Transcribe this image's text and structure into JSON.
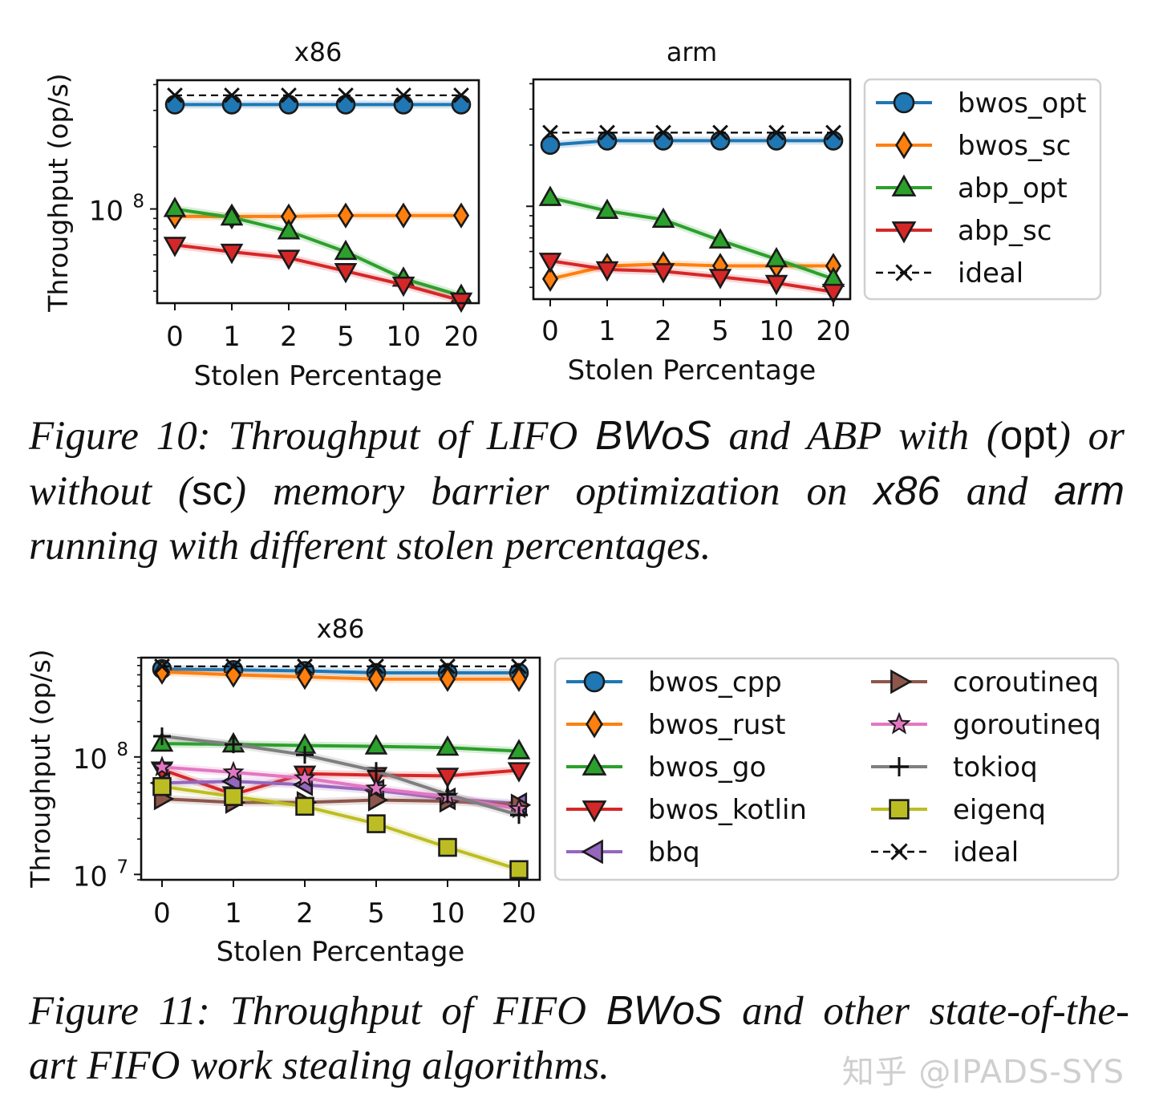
{
  "chart_data": [
    {
      "type": "line",
      "title": "x86",
      "figure": "Figure 10",
      "xlabel": "Stolen Percentage",
      "ylabel": "Throughput (op/s)",
      "yscale": "log",
      "ylim": [
        35000000,
        420000000
      ],
      "yticks": [
        {
          "value": 100000000,
          "label": "10",
          "exp": "8"
        }
      ],
      "categories": [
        "0",
        "1",
        "2",
        "5",
        "10",
        "20"
      ],
      "series": [
        {
          "name": "bwos_opt",
          "color": "#1f77b4",
          "marker": "circle",
          "values": [
            320000000,
            320000000,
            320000000,
            320000000,
            320000000,
            320000000
          ]
        },
        {
          "name": "bwos_sc",
          "color": "#ff7f0e",
          "marker": "diamond",
          "values": [
            92000000,
            92000000,
            92000000,
            93000000,
            93000000,
            93000000
          ]
        },
        {
          "name": "abp_opt",
          "color": "#2ca02c",
          "marker": "triangle-up",
          "values": [
            100000000,
            91000000,
            78000000,
            62000000,
            46000000,
            38000000
          ]
        },
        {
          "name": "abp_sc",
          "color": "#d62728",
          "marker": "triangle-down",
          "values": [
            67000000,
            62000000,
            58000000,
            50000000,
            43000000,
            36000000
          ]
        },
        {
          "name": "ideal",
          "color": "#000000",
          "marker": "x",
          "dashed": true,
          "values": [
            355000000,
            355000000,
            355000000,
            355000000,
            355000000,
            355000000
          ]
        }
      ]
    },
    {
      "type": "line",
      "title": "arm",
      "figure": "Figure 10",
      "xlabel": "Stolen Percentage",
      "ylabel": "",
      "yscale": "log",
      "ylim": [
        35000000,
        420000000
      ],
      "yticks": [],
      "categories": [
        "0",
        "1",
        "2",
        "5",
        "10",
        "20"
      ],
      "series": [
        {
          "name": "bwos_opt",
          "color": "#1f77b4",
          "marker": "circle",
          "values": [
            200000000,
            210000000,
            210000000,
            210000000,
            210000000,
            210000000
          ]
        },
        {
          "name": "bwos_sc",
          "color": "#ff7f0e",
          "marker": "diamond",
          "values": [
            44000000,
            51000000,
            52000000,
            51000000,
            51000000,
            51000000
          ]
        },
        {
          "name": "abp_opt",
          "color": "#2ca02c",
          "marker": "triangle-up",
          "values": [
            110000000,
            95000000,
            86000000,
            68000000,
            55000000,
            44000000
          ]
        },
        {
          "name": "abp_sc",
          "color": "#d62728",
          "marker": "triangle-down",
          "values": [
            54000000,
            49000000,
            48000000,
            45000000,
            42000000,
            38000000
          ]
        },
        {
          "name": "ideal",
          "color": "#000000",
          "marker": "x",
          "dashed": true,
          "values": [
            230000000,
            230000000,
            230000000,
            230000000,
            230000000,
            230000000
          ]
        }
      ]
    },
    {
      "type": "line",
      "title": "x86",
      "figure": "Figure 11",
      "xlabel": "Stolen Percentage",
      "ylabel": "Throughput (op/s)",
      "yscale": "log",
      "ylim": [
        9000000,
        700000000
      ],
      "yticks": [
        {
          "value": 10000000,
          "label": "10",
          "exp": "7"
        },
        {
          "value": 100000000,
          "label": "10",
          "exp": "8"
        }
      ],
      "categories": [
        "0",
        "1",
        "2",
        "5",
        "10",
        "20"
      ],
      "series": [
        {
          "name": "bwos_cpp",
          "color": "#1f77b4",
          "marker": "circle",
          "values": [
            560000000,
            550000000,
            540000000,
            520000000,
            520000000,
            520000000
          ]
        },
        {
          "name": "bwos_rust",
          "color": "#ff7f0e",
          "marker": "diamond",
          "values": [
            530000000,
            500000000,
            480000000,
            460000000,
            460000000,
            460000000
          ]
        },
        {
          "name": "bwos_go",
          "color": "#2ca02c",
          "marker": "triangle-up",
          "values": [
            130000000,
            128000000,
            125000000,
            123000000,
            120000000,
            112000000
          ]
        },
        {
          "name": "bwos_kotlin",
          "color": "#d62728",
          "marker": "triangle-down",
          "values": [
            78000000,
            48000000,
            72000000,
            70000000,
            69000000,
            77000000
          ]
        },
        {
          "name": "bbq",
          "color": "#9467bd",
          "marker": "triangle-left",
          "values": [
            60000000,
            62000000,
            58000000,
            52000000,
            44000000,
            40000000
          ]
        },
        {
          "name": "coroutineq",
          "color": "#8c564b",
          "marker": "triangle-right",
          "values": [
            44000000,
            41000000,
            41000000,
            43000000,
            42000000,
            39000000
          ]
        },
        {
          "name": "goroutineq",
          "color": "#e377c2",
          "marker": "star",
          "values": [
            82000000,
            74000000,
            66000000,
            54000000,
            46000000,
            36000000
          ]
        },
        {
          "name": "tokioq",
          "color": "#7f7f7f",
          "marker": "plus",
          "values": [
            150000000,
            128000000,
            104000000,
            76000000,
            48000000,
            32000000
          ]
        },
        {
          "name": "eigenq",
          "color": "#bcbd22",
          "marker": "square",
          "values": [
            56000000,
            46000000,
            38000000,
            27000000,
            17000000,
            11000000
          ]
        },
        {
          "name": "ideal",
          "color": "#000000",
          "marker": "x",
          "dashed": true,
          "values": [
            590000000,
            590000000,
            590000000,
            590000000,
            590000000,
            590000000
          ]
        }
      ]
    }
  ],
  "captions": {
    "fig10": {
      "l1": [
        "Figure 10: Throughput of LIFO ",
        "BWoS",
        " and ABP with (",
        "opt",
        ") or"
      ],
      "l2": [
        "without (",
        "sc",
        ") memory barrier optimization on ",
        "x86",
        " and ",
        "arm"
      ],
      "l3": "running with different stolen percentages."
    },
    "fig11": {
      "l1": [
        "Figure 11: Throughput of FIFO ",
        "BWoS",
        " and other state-of-the-"
      ],
      "l2": "art FIFO work stealing algorithms."
    }
  },
  "watermark": "知乎 @IPADS-SYS"
}
